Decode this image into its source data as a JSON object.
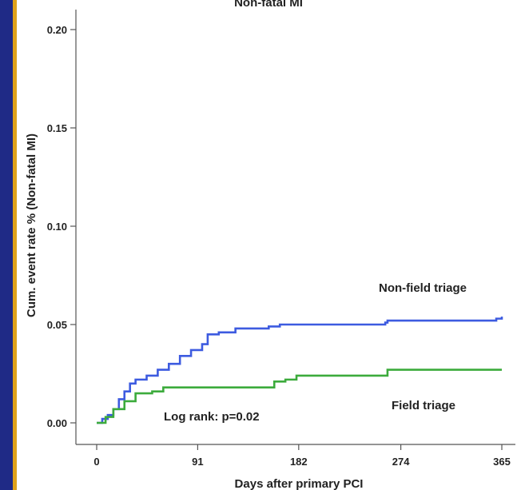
{
  "chart_data": {
    "type": "line",
    "title": "Non-fatal MI",
    "xlabel": "Days after primary PCI",
    "ylabel": "Cum. event rate % (Non-fatal MI)",
    "xlim": [
      0,
      365
    ],
    "ylim": [
      0,
      0.2
    ],
    "x_ticks": [
      "0",
      "91",
      "182",
      "274",
      "365"
    ],
    "y_ticks": [
      "0.00",
      "0.05",
      "0.10",
      "0.15",
      "0.20"
    ],
    "series": [
      {
        "name": "Non-field triage",
        "color": "#3d5be0",
        "points": [
          [
            0,
            0.0
          ],
          [
            5,
            0.002
          ],
          [
            10,
            0.004
          ],
          [
            15,
            0.007
          ],
          [
            20,
            0.012
          ],
          [
            25,
            0.016
          ],
          [
            30,
            0.02
          ],
          [
            35,
            0.022
          ],
          [
            45,
            0.024
          ],
          [
            55,
            0.027
          ],
          [
            65,
            0.03
          ],
          [
            75,
            0.034
          ],
          [
            85,
            0.037
          ],
          [
            95,
            0.04
          ],
          [
            100,
            0.045
          ],
          [
            110,
            0.046
          ],
          [
            125,
            0.048
          ],
          [
            155,
            0.049
          ],
          [
            165,
            0.05
          ],
          [
            230,
            0.05
          ],
          [
            260,
            0.051
          ],
          [
            262,
            0.052
          ],
          [
            360,
            0.053
          ],
          [
            365,
            0.054
          ]
        ]
      },
      {
        "name": "Field triage",
        "color": "#3cab3c",
        "points": [
          [
            0,
            0.0
          ],
          [
            8,
            0.003
          ],
          [
            15,
            0.007
          ],
          [
            25,
            0.011
          ],
          [
            35,
            0.015
          ],
          [
            50,
            0.016
          ],
          [
            60,
            0.018
          ],
          [
            155,
            0.018
          ],
          [
            160,
            0.021
          ],
          [
            170,
            0.022
          ],
          [
            180,
            0.024
          ],
          [
            255,
            0.024
          ],
          [
            262,
            0.027
          ],
          [
            365,
            0.027
          ]
        ]
      }
    ],
    "annotations": [
      "Log rank: p=0.02"
    ]
  },
  "colors": {
    "background_frame": "#2a2f8c",
    "stripe": "#e0a21a",
    "panel": "#ffffff"
  }
}
